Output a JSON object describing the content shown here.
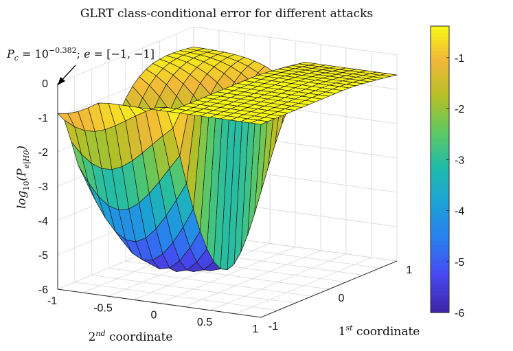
{
  "chart_data": {
    "type": "surface",
    "title": "GLRT class-conditional error for different attacks",
    "xlabel": "1st coordinate",
    "ylabel": "2nd coordinate",
    "zlabel": "log10(Pe|H0)",
    "x_range": [
      -1,
      1
    ],
    "y_range": [
      -1,
      1
    ],
    "zlim": [
      -6,
      0
    ],
    "colorbar_range": [
      -6,
      -0.382
    ],
    "x_ticks": [
      "-1",
      "0",
      "1"
    ],
    "y_ticks": [
      "-1",
      "-0.5",
      "0",
      "0.5",
      "1"
    ],
    "z_ticks": [
      "0",
      "-1",
      "-2",
      "-3",
      "-4",
      "-5",
      "-6"
    ],
    "colorbar_ticks": [
      "-1",
      "-2",
      "-3",
      "-4",
      "-5",
      "-6"
    ],
    "grid": true,
    "colormap": "parula",
    "colormap_stops": [
      "#3e26a8",
      "#4748f1",
      "#2a7ef0",
      "#1ca1d8",
      "#1fbbab",
      "#5ec962",
      "#b5c026",
      "#f2b738",
      "#f9fb15"
    ],
    "annotation": {
      "text": "Pc = 10^-0.382; e = [-1, -1]",
      "point": {
        "x": -1,
        "y": -1,
        "z": -0.382
      }
    },
    "model": "surface depicted: log10(Pe|H0)(x, y) is maximal (-0.382) at e = [-1,-1], rises with the 1st coordinate offset from the ridge and falls steeply toward the valley near x = y where it reaches about -6"
  }
}
